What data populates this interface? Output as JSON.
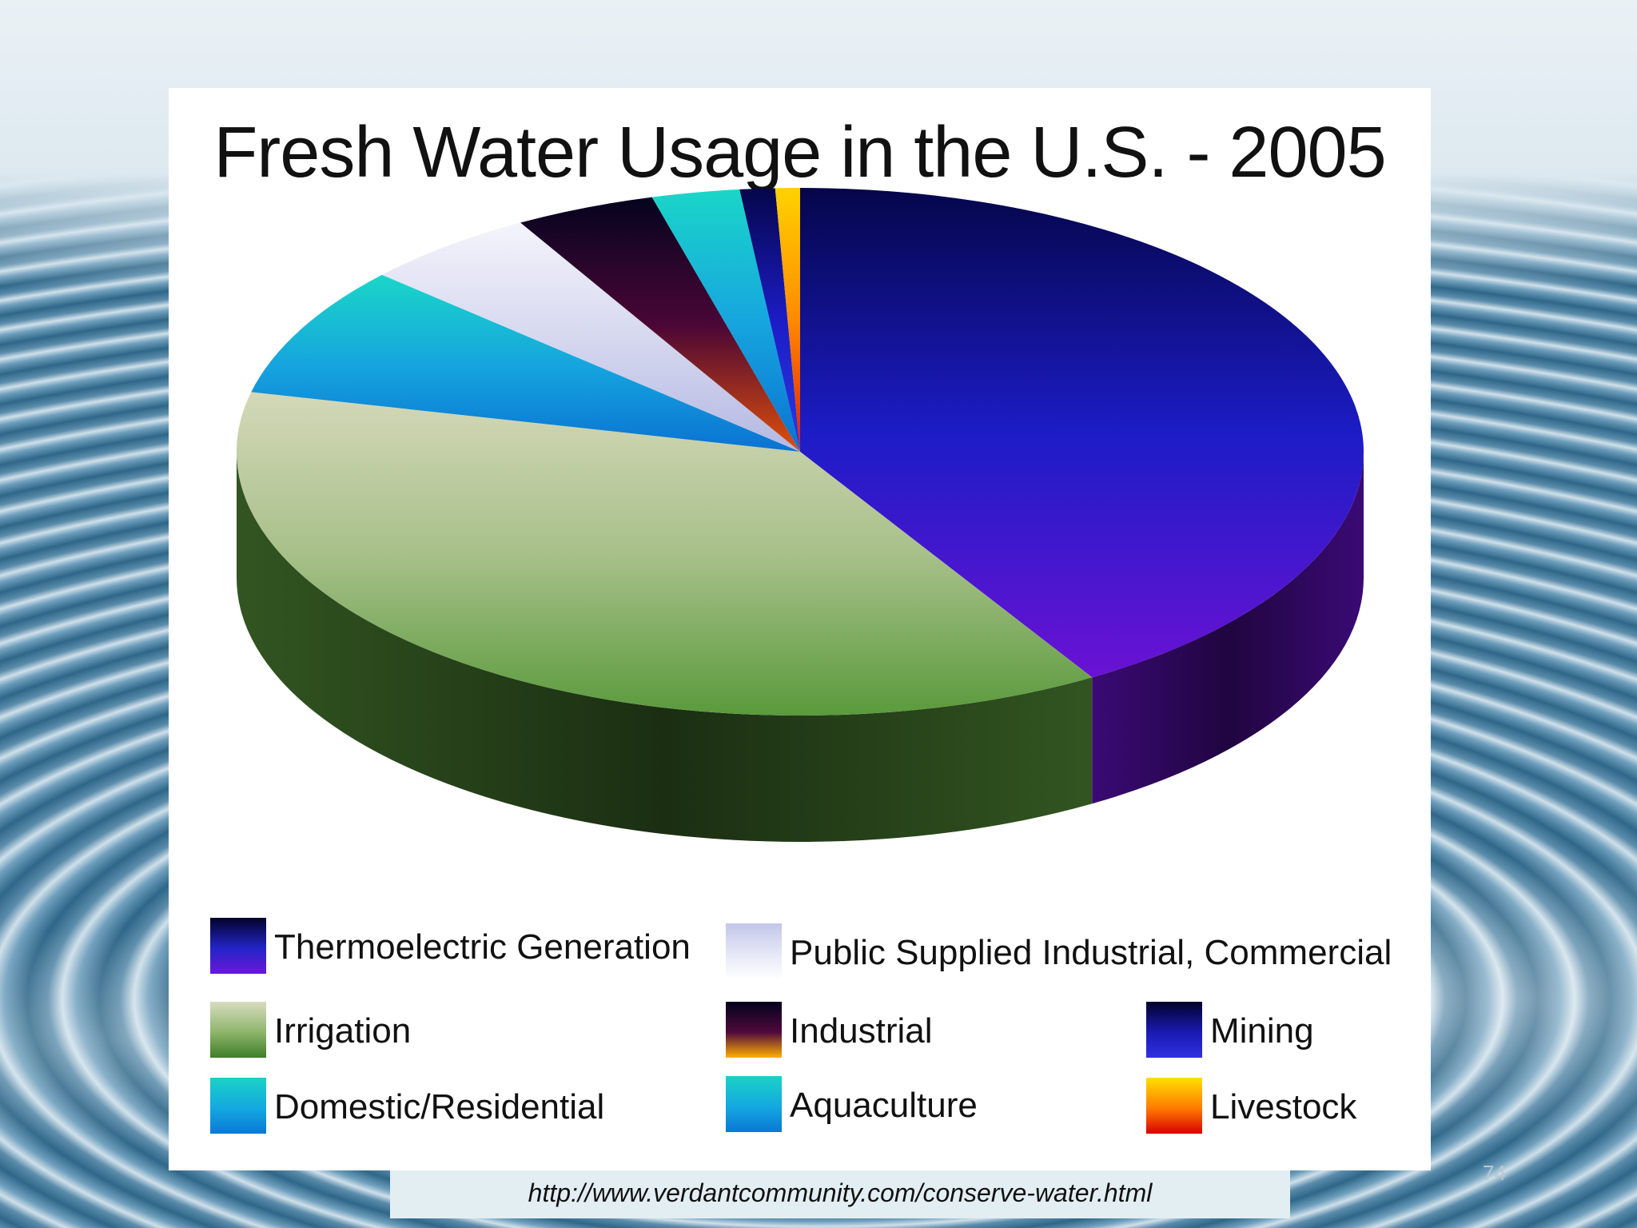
{
  "chart_data": {
    "type": "pie",
    "title": "Fresh Water Usage in the U.S. - 2005",
    "slices": [
      {
        "label": "Thermoelectric Generation",
        "value": 41,
        "colors": [
          "#05064a",
          "#1c1cc6",
          "#6a12d4"
        ]
      },
      {
        "label": "Irrigation",
        "value": 37,
        "colors": [
          "#d4d8b8",
          "#a8c08a",
          "#5a9a3c"
        ]
      },
      {
        "label": "Domestic/Residential",
        "value": 8,
        "colors": [
          "#1ad6c8",
          "#16a6de",
          "#0a72d2"
        ]
      },
      {
        "label": "Public Supplied Industrial, Commercial",
        "value": 5,
        "colors": [
          "#f4f4fb",
          "#d6d8ef",
          "#b4b8e2"
        ]
      },
      {
        "label": "Industrial",
        "value": 4,
        "colors": [
          "#04041e",
          "#4a0636",
          "#e0500a"
        ]
      },
      {
        "label": "Aquaculture",
        "value": 2.5,
        "colors": [
          "#1ad6c8",
          "#16a6de",
          "#0a72d2"
        ]
      },
      {
        "label": "Mining",
        "value": 1,
        "colors": [
          "#05064a",
          "#1c1cc6",
          "#2a3ae0"
        ]
      },
      {
        "label": "Livestock",
        "value": 0.7,
        "colors": [
          "#ffd200",
          "#ff8a00",
          "#e01a00"
        ]
      }
    ],
    "legend_position": "bottom"
  },
  "legend": [
    {
      "label": "Thermoelectric Generation",
      "colors": [
        "#02022a",
        "#2424c8",
        "#6a18d8"
      ]
    },
    {
      "label": "Public Supplied Industrial, Commercial",
      "colors": [
        "#c2c6e8",
        "#e6e8f6",
        "#ffffff"
      ]
    },
    {
      "label": "Irrigation",
      "colors": [
        "#d8dcc0",
        "#8db46a",
        "#3e7e28"
      ]
    },
    {
      "label": "Industrial",
      "colors": [
        "#02021c",
        "#500a3c",
        "#ffb000"
      ]
    },
    {
      "label": "Mining",
      "colors": [
        "#02022a",
        "#1a1ab4",
        "#3030e0"
      ]
    },
    {
      "label": "Domestic/Residential",
      "colors": [
        "#1ad2c6",
        "#14a8e0",
        "#0a78d6"
      ]
    },
    {
      "label": "Aquaculture",
      "colors": [
        "#1ad2c6",
        "#14a8e0",
        "#0a78d6"
      ]
    },
    {
      "label": "Livestock",
      "colors": [
        "#ffe000",
        "#ff7a00",
        "#d80000"
      ]
    }
  ],
  "source_url": "http://www.verdantcommunity.com/conserve-water.html",
  "page_number": "74"
}
